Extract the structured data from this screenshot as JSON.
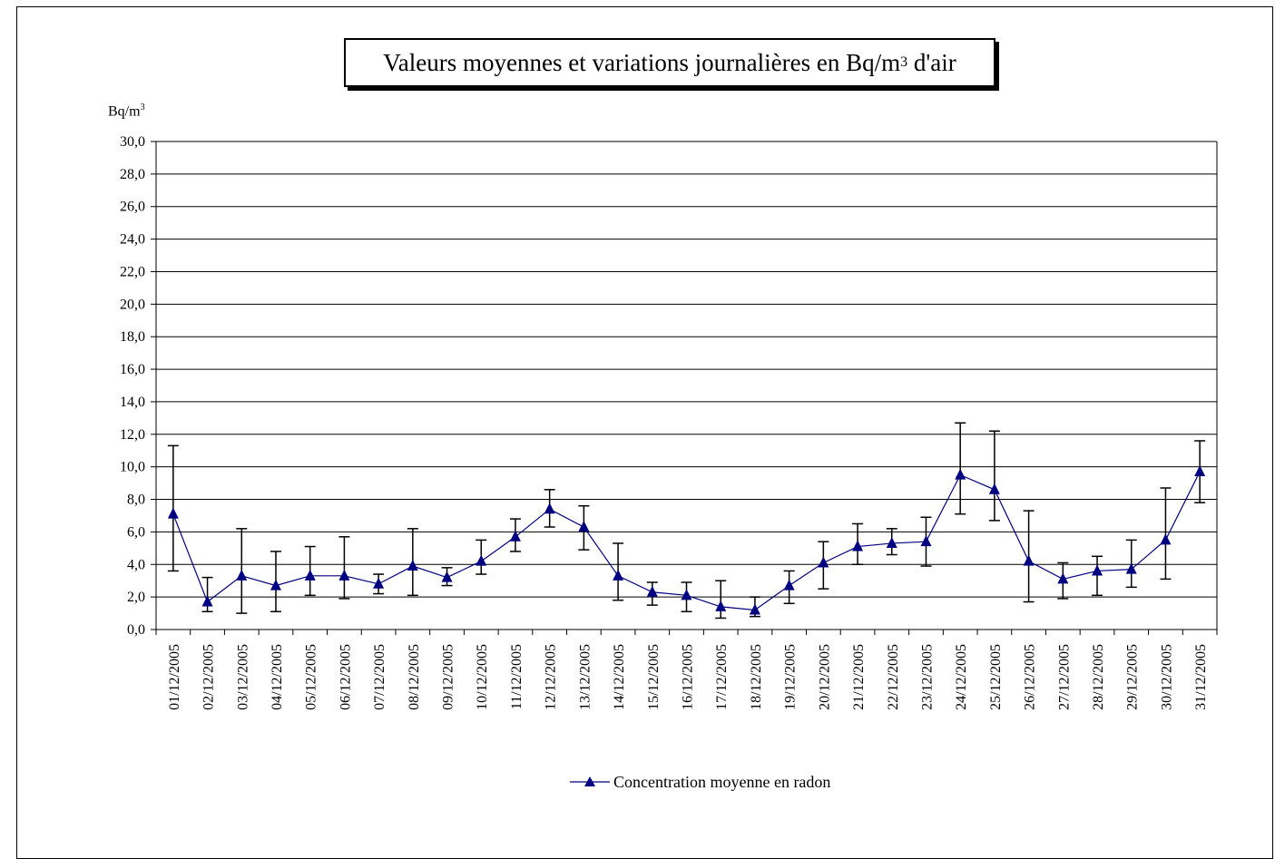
{
  "chart_data": {
    "type": "line",
    "title": {
      "main": "Valeurs moyennes et variations journalières en Bq/m",
      "superscript": "3",
      "suffix": " d'air"
    },
    "ylabel": {
      "main": "Bq/m",
      "superscript": "3"
    },
    "xlabel": "",
    "ylim": [
      0,
      30
    ],
    "ytick_step": 2,
    "ytick_labels": [
      "0,0",
      "2,0",
      "4,0",
      "6,0",
      "8,0",
      "10,0",
      "12,0",
      "14,0",
      "16,0",
      "18,0",
      "20,0",
      "22,0",
      "24,0",
      "26,0",
      "28,0",
      "30,0"
    ],
    "grid": true,
    "legend_position": "bottom-center",
    "categories": [
      "01/12/2005",
      "02/12/2005",
      "03/12/2005",
      "04/12/2005",
      "05/12/2005",
      "06/12/2005",
      "07/12/2005",
      "08/12/2005",
      "09/12/2005",
      "10/12/2005",
      "11/12/2005",
      "12/12/2005",
      "13/12/2005",
      "14/12/2005",
      "15/12/2005",
      "16/12/2005",
      "17/12/2005",
      "18/12/2005",
      "19/12/2005",
      "20/12/2005",
      "21/12/2005",
      "22/12/2005",
      "23/12/2005",
      "24/12/2005",
      "25/12/2005",
      "26/12/2005",
      "27/12/2005",
      "28/12/2005",
      "29/12/2005",
      "30/12/2005",
      "31/12/2005"
    ],
    "series": [
      {
        "name": "Concentration moyenne en radon",
        "color": "#000080",
        "marker": "triangle",
        "values": [
          7.1,
          1.7,
          3.3,
          2.7,
          3.3,
          3.3,
          2.8,
          3.9,
          3.2,
          4.2,
          5.7,
          7.4,
          6.3,
          3.3,
          2.3,
          2.1,
          1.4,
          1.2,
          2.7,
          4.1,
          5.1,
          5.3,
          5.4,
          9.5,
          8.6,
          4.2,
          3.1,
          3.6,
          3.7,
          5.5,
          9.7
        ],
        "error_low": [
          3.6,
          1.1,
          1.0,
          1.1,
          2.1,
          1.9,
          2.2,
          2.1,
          2.7,
          3.4,
          4.8,
          6.3,
          4.9,
          1.8,
          1.5,
          1.1,
          0.7,
          0.8,
          1.6,
          2.5,
          4.0,
          4.6,
          3.9,
          7.1,
          6.7,
          1.7,
          1.9,
          2.1,
          2.6,
          3.1,
          7.8
        ],
        "error_high": [
          11.3,
          3.2,
          6.2,
          4.8,
          5.1,
          5.7,
          3.4,
          6.2,
          3.8,
          5.5,
          6.8,
          8.6,
          7.6,
          5.3,
          2.9,
          2.9,
          3.0,
          2.0,
          3.6,
          5.4,
          6.5,
          6.2,
          6.9,
          12.7,
          12.2,
          7.3,
          4.1,
          4.5,
          5.5,
          8.7,
          11.6
        ]
      }
    ]
  }
}
